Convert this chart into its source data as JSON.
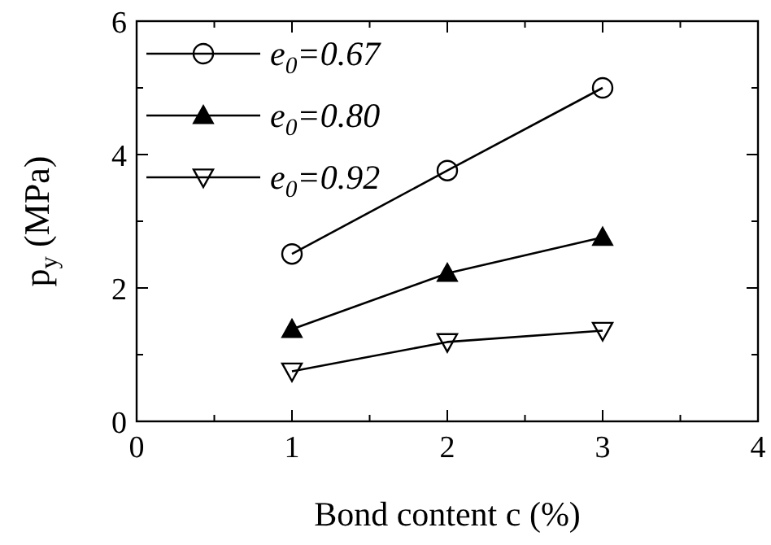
{
  "chart_data": {
    "type": "line",
    "xlabel": "Bond content c (%)",
    "ylabel": "p$_{y}$ (MPa)",
    "xlim": [
      0,
      4
    ],
    "ylim": [
      0,
      6
    ],
    "xticks": [
      0,
      {
        "value": 0.5,
        "label": null
      },
      1,
      {
        "value": 1.5,
        "label": null
      },
      2,
      {
        "value": 2.5,
        "label": null
      },
      3,
      {
        "value": 3.5,
        "label": null
      },
      4
    ],
    "yticks": [
      0,
      {
        "value": 1,
        "label": null
      },
      2,
      {
        "value": 3,
        "label": null
      },
      4,
      {
        "value": 5,
        "label": null
      },
      6
    ],
    "x": [
      1,
      2,
      3
    ],
    "legend": "top left",
    "grid": false,
    "series": [
      {
        "name": "e$_{0}$=0.67",
        "color": "#000000",
        "marker": "circle-open",
        "values": [
          2.51,
          3.76,
          5.0
        ]
      },
      {
        "name": "e$_{0}$=0.80",
        "color": "#000000",
        "marker": "triangle",
        "values": [
          1.38,
          2.22,
          2.76
        ]
      },
      {
        "name": "e$_{0}$=0.92",
        "color": "#000000",
        "marker": "triangle-down-open",
        "values": [
          0.75,
          1.19,
          1.36
        ]
      }
    ]
  }
}
